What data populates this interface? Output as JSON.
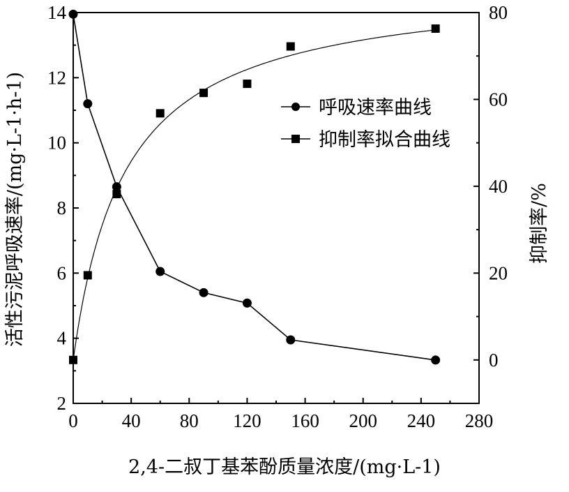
{
  "chart_data": {
    "type": "line",
    "x_axis": {
      "label": "2,4-二叔丁基苯酚质量浓度/(mg·L-1)",
      "range": [
        0,
        280
      ],
      "ticks": [
        "0",
        "40",
        "80",
        "120",
        "160",
        "200",
        "240",
        "280"
      ]
    },
    "y_axis_left": {
      "label": "活性污泥呼吸速率/(mg·L-1·h-1)",
      "range": [
        2,
        14
      ],
      "ticks": [
        "2",
        "4",
        "6",
        "8",
        "10",
        "12",
        "14"
      ]
    },
    "y_axis_right": {
      "label": "抑制率/%",
      "range": [
        -10,
        80
      ],
      "ticks": [
        "0",
        "20",
        "40",
        "60",
        "80"
      ]
    },
    "legend_position": "top-right",
    "series": [
      {
        "name": "呼吸速率曲线",
        "axis": "left",
        "marker": "circle",
        "style": "polyline",
        "x": [
          0,
          10,
          30,
          60,
          90,
          120,
          150,
          250
        ],
        "y": [
          13.95,
          11.2,
          8.65,
          6.05,
          5.4,
          5.08,
          3.95,
          3.33
        ]
      },
      {
        "name": "抑制率拟合曲线",
        "axis": "right",
        "marker": "square",
        "style": "fitted-curve",
        "x": [
          0,
          10,
          30,
          60,
          90,
          120,
          150,
          250
        ],
        "y": [
          0,
          19.5,
          38.2,
          56.8,
          61.5,
          63.6,
          72.2,
          76.3
        ]
      }
    ]
  }
}
